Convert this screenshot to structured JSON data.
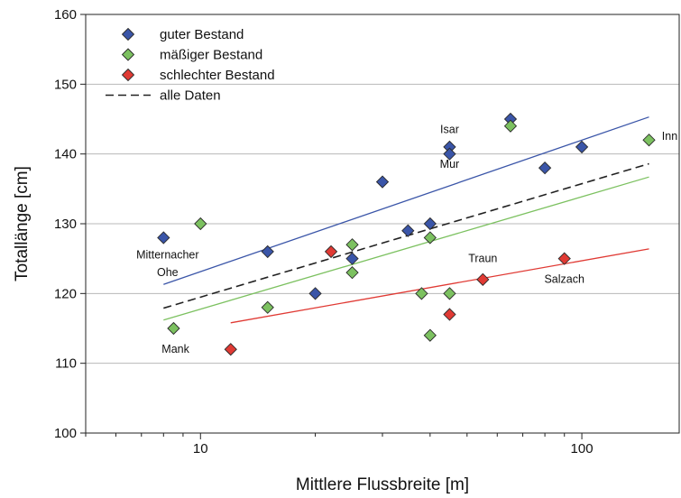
{
  "chart_data": {
    "type": "scatter",
    "xlabel": "Mittlere Flussbreite [m]",
    "ylabel": "Totallänge [cm]",
    "x_scale": "log",
    "xlim": [
      5,
      180
    ],
    "ylim": [
      100,
      160
    ],
    "x_ticks": [
      10,
      100
    ],
    "y_ticks": [
      100,
      110,
      120,
      130,
      140,
      150,
      160
    ],
    "grid": "horizontal",
    "legend_position": "top-left",
    "colors": {
      "guter": "#3a55a8",
      "maessiger": "#7cc160",
      "schlechter": "#e03a34",
      "alle": "#222222"
    },
    "series": [
      {
        "name": "guter Bestand",
        "marker": "diamond",
        "points": [
          [
            8,
            128
          ],
          [
            15,
            126
          ],
          [
            20,
            120
          ],
          [
            25,
            125
          ],
          [
            30,
            136
          ],
          [
            35,
            129
          ],
          [
            40,
            130
          ],
          [
            45,
            141
          ],
          [
            45,
            140
          ],
          [
            65,
            145
          ],
          [
            80,
            138
          ],
          [
            100,
            141
          ]
        ]
      },
      {
        "name": "mäßiger Bestand",
        "marker": "diamond",
        "points": [
          [
            8.5,
            115
          ],
          [
            10,
            130
          ],
          [
            15,
            118
          ],
          [
            25,
            127
          ],
          [
            25,
            123
          ],
          [
            38,
            120
          ],
          [
            40,
            128
          ],
          [
            40,
            114
          ],
          [
            45,
            120
          ],
          [
            65,
            144
          ],
          [
            150,
            142
          ]
        ]
      },
      {
        "name": "schlechter Bestand",
        "marker": "diamond",
        "points": [
          [
            12,
            112
          ],
          [
            22,
            126
          ],
          [
            45,
            117
          ],
          [
            55,
            122
          ],
          [
            90,
            125
          ]
        ]
      }
    ],
    "trendlines": [
      {
        "name": "guter Bestand",
        "points": [
          [
            8,
            121.3
          ],
          [
            150,
            145.3
          ]
        ]
      },
      {
        "name": "mäßiger Bestand",
        "points": [
          [
            8,
            116.2
          ],
          [
            150,
            136.7
          ]
        ]
      },
      {
        "name": "schlechter Bestand",
        "points": [
          [
            12,
            115.8
          ],
          [
            150,
            126.4
          ]
        ]
      },
      {
        "name": "alle Daten",
        "style": "dashed",
        "points": [
          [
            8,
            117.9
          ],
          [
            150,
            138.6
          ]
        ]
      }
    ],
    "annotations": [
      {
        "text": "Isar",
        "x": 45,
        "y": 143
      },
      {
        "text": "Mur",
        "x": 45,
        "y": 138
      },
      {
        "text": "Inn",
        "x": 170,
        "y": 142
      },
      {
        "text": "Mitternacher",
        "x": 8.2,
        "y": 125
      },
      {
        "text": "Ohe",
        "x": 8.2,
        "y": 122.5
      },
      {
        "text": "Traun",
        "x": 55,
        "y": 124.5
      },
      {
        "text": "Salzach",
        "x": 90,
        "y": 121.5
      },
      {
        "text": "Mank",
        "x": 8.6,
        "y": 111.5
      }
    ]
  }
}
